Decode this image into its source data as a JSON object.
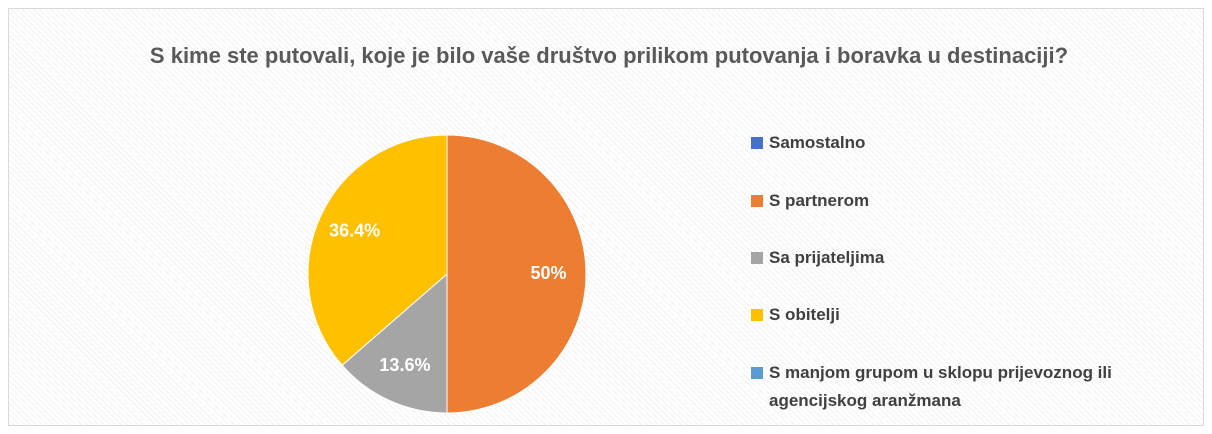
{
  "chart_data": {
    "type": "pie",
    "title": "S kime ste putovali, koje je bilo vaše društvo prilikom putovanja i boravka u destinaciji?",
    "categories": [
      "Samostalno",
      "S partnerom",
      "Sa prijateljima",
      "S obitelji",
      "S manjom grupom u sklopu prijevoznog ili agencijskog aranžmana"
    ],
    "values": [
      0,
      50,
      13.6,
      36.4,
      0
    ],
    "value_labels": [
      null,
      "50%",
      "13.6%",
      "36.4%",
      null
    ],
    "colors": [
      "#4472c4",
      "#ed7d31",
      "#a5a5a5",
      "#ffc000",
      "#5b9bd5"
    ],
    "legend": "right"
  }
}
